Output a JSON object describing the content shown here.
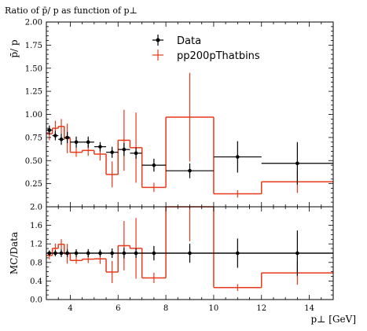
{
  "chart_data": {
    "type": "line",
    "title": "Ratio of p̄/ p as function of p⊥",
    "xlabel": "p⊥ [GeV]",
    "ylabel_main": "p̄/ p",
    "ylabel_ratio": "MC/Data",
    "xlim": [
      3,
      15
    ],
    "ylim_main": [
      0,
      2
    ],
    "ylim_ratio": [
      0,
      2
    ],
    "x_ticks": [
      4,
      6,
      8,
      10,
      12,
      14
    ],
    "y_ticks_main": [
      "0.25",
      "0.50",
      "0.75",
      "1.00",
      "1.25",
      "1.50",
      "1.75",
      "2.00"
    ],
    "y_ticks_ratio": [
      "0.0",
      "0.4",
      "0.8",
      "1.2",
      "1.6",
      "2.0"
    ],
    "legend_position": "top-center",
    "colors": {
      "data": "#000000",
      "mc": "#e8391a"
    },
    "series": [
      {
        "name": "Data",
        "style": "points",
        "points": [
          {
            "xlo": 3.0,
            "xhi": 3.25,
            "y": 0.83,
            "err": 0.05
          },
          {
            "xlo": 3.25,
            "xhi": 3.5,
            "y": 0.77,
            "err": 0.05
          },
          {
            "xlo": 3.5,
            "xhi": 3.75,
            "y": 0.73,
            "err": 0.06
          },
          {
            "xlo": 3.75,
            "xhi": 4.0,
            "y": 0.75,
            "err": 0.06
          },
          {
            "xlo": 4.0,
            "xhi": 4.5,
            "y": 0.7,
            "err": 0.06
          },
          {
            "xlo": 4.5,
            "xhi": 5.0,
            "y": 0.7,
            "err": 0.06
          },
          {
            "xlo": 5.0,
            "xhi": 5.5,
            "y": 0.65,
            "err": 0.05
          },
          {
            "xlo": 5.5,
            "xhi": 6.0,
            "y": 0.59,
            "err": 0.06
          },
          {
            "xlo": 6.0,
            "xhi": 6.5,
            "y": 0.62,
            "err": 0.07
          },
          {
            "xlo": 6.5,
            "xhi": 7.0,
            "y": 0.58,
            "err": 0.06
          },
          {
            "xlo": 7.0,
            "xhi": 8.0,
            "y": 0.45,
            "err": 0.07
          },
          {
            "xlo": 8.0,
            "xhi": 10.0,
            "y": 0.39,
            "err": 0.08
          },
          {
            "xlo": 10.0,
            "xhi": 12.0,
            "y": 0.54,
            "err": 0.17
          },
          {
            "xlo": 12.0,
            "xhi": 15.0,
            "y": 0.47,
            "err": 0.23
          }
        ]
      },
      {
        "name": "pp200pThatbins",
        "style": "step",
        "points": [
          {
            "xlo": 3.0,
            "xhi": 3.25,
            "y": 0.79,
            "err": 0.07
          },
          {
            "xlo": 3.25,
            "xhi": 3.5,
            "y": 0.85,
            "err": 0.08
          },
          {
            "xlo": 3.5,
            "xhi": 3.75,
            "y": 0.87,
            "err": 0.08
          },
          {
            "xlo": 3.75,
            "xhi": 4.0,
            "y": 0.74,
            "err": 0.16
          },
          {
            "xlo": 4.0,
            "xhi": 4.5,
            "y": 0.59,
            "err": 0.05
          },
          {
            "xlo": 4.5,
            "xhi": 5.0,
            "y": 0.61,
            "err": 0.06
          },
          {
            "xlo": 5.0,
            "xhi": 5.5,
            "y": 0.57,
            "err": 0.07
          },
          {
            "xlo": 5.5,
            "xhi": 6.0,
            "y": 0.35,
            "err": 0.14
          },
          {
            "xlo": 6.0,
            "xhi": 6.5,
            "y": 0.72,
            "err": 0.33
          },
          {
            "xlo": 6.5,
            "xhi": 7.0,
            "y": 0.64,
            "err": 0.38
          },
          {
            "xlo": 7.0,
            "xhi": 8.0,
            "y": 0.21,
            "err": 0.05
          },
          {
            "xlo": 8.0,
            "xhi": 10.0,
            "y": 0.97,
            "err": 0.48
          },
          {
            "xlo": 10.0,
            "xhi": 12.0,
            "y": 0.14,
            "err": 0.04
          },
          {
            "xlo": 12.0,
            "xhi": 15.0,
            "y": 0.27,
            "err": 0.12
          }
        ]
      }
    ]
  }
}
